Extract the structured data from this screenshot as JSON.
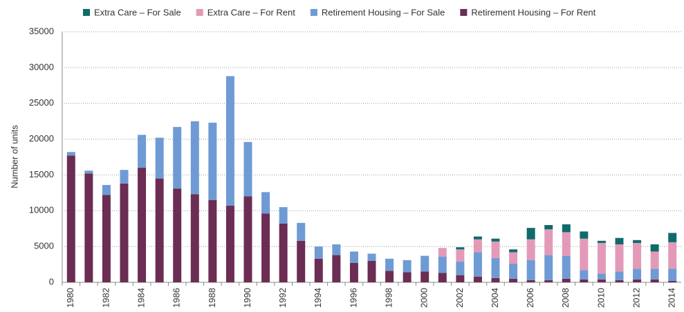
{
  "chart_data": {
    "type": "stacked_bar",
    "y_label": "Number of units",
    "categories": [
      "1980",
      null,
      "1982",
      null,
      "1984",
      null,
      "1986",
      null,
      "1988",
      null,
      "1990",
      null,
      "1992",
      null,
      "1994",
      null,
      "1996",
      null,
      "1998",
      null,
      "2000",
      null,
      "2002",
      null,
      "2004",
      null,
      "2006",
      null,
      "2008",
      null,
      "2010",
      null,
      "2012",
      null,
      "2014"
    ],
    "series": [
      {
        "name": "Extra Care – For Sale",
        "color": "#0f6b6b",
        "values": [
          0,
          0,
          0,
          0,
          0,
          0,
          0,
          0,
          0,
          0,
          0,
          0,
          0,
          0,
          0,
          0,
          0,
          0,
          0,
          0,
          0,
          0,
          300,
          400,
          400,
          400,
          1600,
          600,
          1100,
          1000,
          300,
          900,
          400,
          1000,
          1300
        ]
      },
      {
        "name": "Extra Care – For Rent",
        "color": "#e39ab8",
        "values": [
          0,
          0,
          0,
          0,
          0,
          0,
          0,
          0,
          0,
          0,
          0,
          0,
          0,
          0,
          0,
          0,
          0,
          0,
          0,
          0,
          0,
          1200,
          1700,
          1800,
          2300,
          1600,
          2900,
          3600,
          3300,
          4400,
          4300,
          3800,
          3600,
          2400,
          3700
        ]
      },
      {
        "name": "Retirement Housing – For Sale",
        "color": "#6f9bd4",
        "values": [
          500,
          400,
          1400,
          1900,
          4600,
          5700,
          8600,
          10200,
          10800,
          18100,
          7600,
          3000,
          2300,
          2500,
          1700,
          1500,
          1600,
          1000,
          1700,
          1700,
          2200,
          2300,
          1900,
          3400,
          2800,
          2100,
          2800,
          3500,
          3200,
          1300,
          800,
          1200,
          1500,
          1500,
          1700
        ]
      },
      {
        "name": "Retirement Housing – For Rent",
        "color": "#6b2d53",
        "values": [
          17700,
          15200,
          12200,
          13800,
          16000,
          14500,
          13100,
          12300,
          11500,
          10700,
          12000,
          9600,
          8200,
          5800,
          3300,
          3800,
          2700,
          3000,
          1600,
          1400,
          1500,
          1300,
          1000,
          800,
          600,
          500,
          300,
          300,
          500,
          400,
          400,
          300,
          400,
          400,
          200
        ]
      }
    ],
    "ylim": [
      0,
      35000
    ],
    "yticks": [
      0,
      5000,
      10000,
      15000,
      20000,
      25000,
      30000,
      35000
    ],
    "grid": true,
    "legend": "top"
  }
}
